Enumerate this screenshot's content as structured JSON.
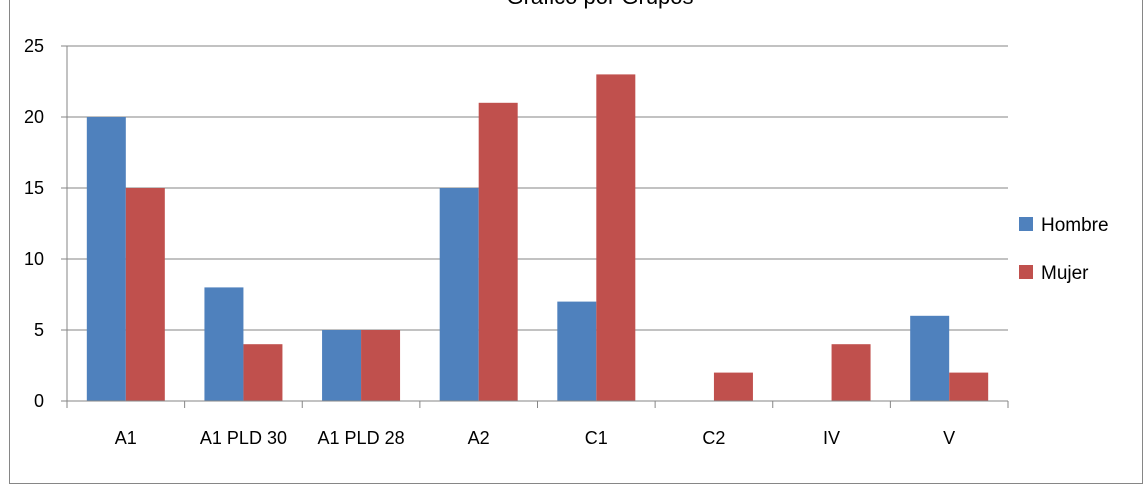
{
  "chart_data": {
    "type": "bar",
    "title": "Gráfico por Grupos",
    "categories": [
      "A1",
      "A1 PLD 30",
      "A1 PLD 28",
      "A2",
      "C1",
      "C2",
      "IV",
      "V"
    ],
    "series": [
      {
        "name": "Hombre",
        "color": "#4F81BD",
        "values": [
          20,
          8,
          5,
          15,
          7,
          0,
          0,
          6
        ]
      },
      {
        "name": "Mujer",
        "color": "#C0504D",
        "values": [
          15,
          4,
          5,
          21,
          23,
          2,
          4,
          2
        ]
      }
    ],
    "ylim": [
      0,
      25
    ],
    "yticks": [
      0,
      5,
      10,
      15,
      20,
      25
    ],
    "grid": true,
    "legend": "right"
  }
}
